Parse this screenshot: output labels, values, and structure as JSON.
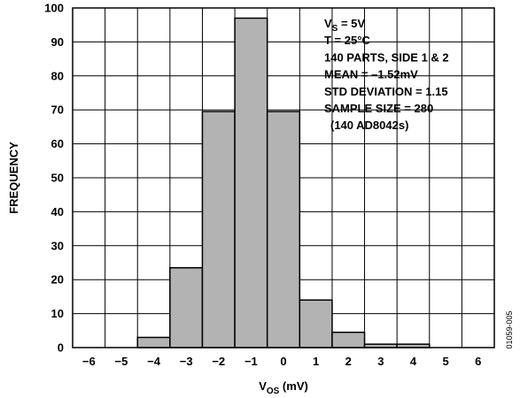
{
  "chart_data": {
    "type": "bar",
    "title": "",
    "xlabel": {
      "main": "V",
      "sub": "OS",
      "unit": " (mV)"
    },
    "ylabel": "FREQUENCY",
    "xlim": [
      -6.5,
      6.5
    ],
    "ylim": [
      0,
      100
    ],
    "x_ticks": [
      "−6",
      "−5",
      "−4",
      "−3",
      "−2",
      "−1",
      "0",
      "1",
      "2",
      "3",
      "4",
      "5",
      "6"
    ],
    "y_ticks": [
      "0",
      "10",
      "20",
      "30",
      "40",
      "50",
      "60",
      "70",
      "80",
      "90",
      "100"
    ],
    "grid": true,
    "bar_color": "#b3b3b3",
    "bins": [
      {
        "x": -4,
        "value": 3
      },
      {
        "x": -3,
        "value": 23.5
      },
      {
        "x": -2,
        "value": 69.5
      },
      {
        "x": -1,
        "value": 97
      },
      {
        "x": 0,
        "value": 69.5
      },
      {
        "x": 1,
        "value": 14
      },
      {
        "x": 2,
        "value": 4.5
      },
      {
        "x": 3,
        "value": 1
      },
      {
        "x": 4,
        "value": 1
      }
    ],
    "annotations": [
      {
        "main": "V",
        "sub": "S",
        "rest": " = 5V"
      },
      {
        "main": "T = 25°C"
      },
      {
        "main": "140 PARTS, SIDE 1 & 2"
      },
      {
        "main": "MEAN = –1.52mV"
      },
      {
        "main": "STD DEVIATION = 1.15"
      },
      {
        "main": "SAMPLE SIZE = 280"
      },
      {
        "main": "(140 AD8042s)"
      }
    ]
  },
  "figure_id": "01059-005"
}
